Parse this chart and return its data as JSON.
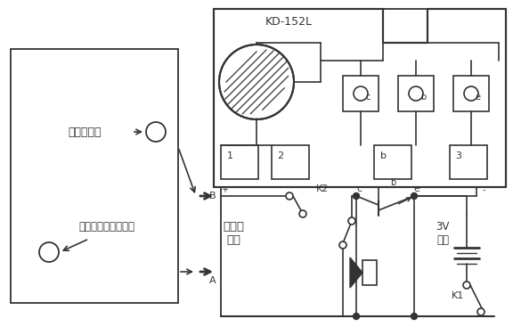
{
  "bg_color": "#ffffff",
  "line_color": "#333333",
  "title": "KD-152L",
  "label_taiyangneng": "太阳能\n水箱",
  "label_dianci": "3V\n电池",
  "label_shuixiang_top": "水箱出气孔",
  "label_shuixiang_bot": "水箱下部进水铜螺母",
  "label_B": "B",
  "label_A": "A",
  "label_K1": "K1",
  "label_K2": "K2",
  "label_b": "b",
  "label_c": "c",
  "label_e": "e",
  "label_plus": "+",
  "label_minus": "-",
  "label_1": "1",
  "label_2": "2",
  "label_3": "3"
}
